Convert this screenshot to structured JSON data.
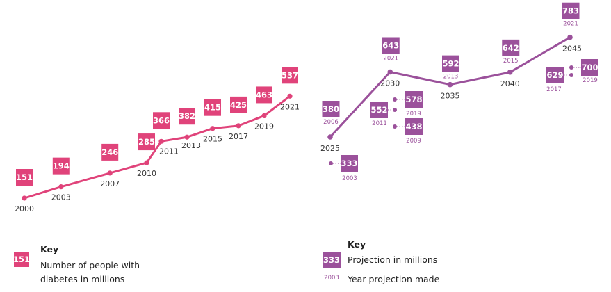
{
  "colors": {
    "pink": "#e0437a",
    "purple": "#9b519b"
  },
  "chart_data": [
    {
      "type": "line",
      "series": [
        {
          "x": [
            "2000",
            "2003",
            "2007",
            "2010",
            "2011",
            "2013",
            "2015",
            "2017",
            "2019",
            "2021"
          ],
          "values": [
            151,
            194,
            246,
            285,
            366,
            382,
            415,
            425,
            463,
            537
          ]
        }
      ],
      "key": {
        "title": "Key",
        "sample": "151",
        "text": "Number of people with diabetes in millions"
      }
    },
    {
      "type": "line",
      "series": [
        {
          "x": [
            "2025",
            "2030",
            "2035",
            "2040",
            "2045"
          ],
          "values": [
            380,
            643,
            592,
            642,
            783
          ],
          "made": [
            "2006",
            "2021",
            "2013",
            "2015",
            "2021"
          ]
        }
      ],
      "side_projections": [
        {
          "value": 333,
          "made": "2003"
        },
        {
          "value": 552,
          "made": "2011"
        },
        {
          "value": 578,
          "made": "2019"
        },
        {
          "value": 438,
          "made": "2009"
        },
        {
          "value": 629,
          "made": "2017"
        },
        {
          "value": 700,
          "made": "2019"
        }
      ],
      "key": {
        "title": "Key",
        "sample": "333",
        "sample_year": "2003",
        "text1": "Projection in millions",
        "text2": "Year projection made"
      }
    }
  ]
}
